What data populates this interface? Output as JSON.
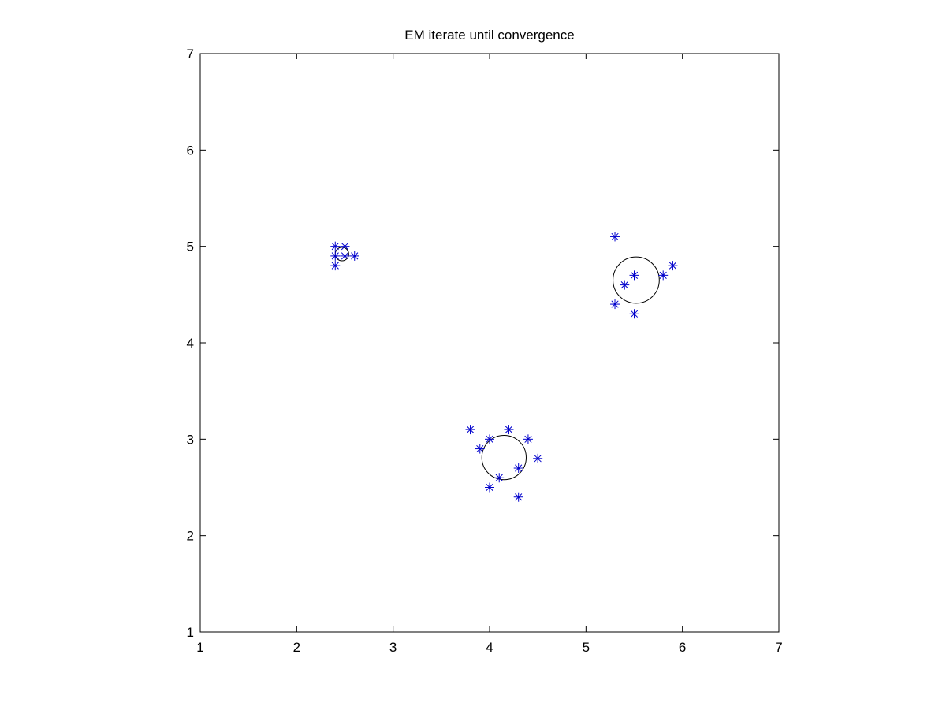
{
  "chart_data": {
    "type": "scatter",
    "title": "EM iterate until convergence",
    "xlabel": "",
    "ylabel": "",
    "xlim": [
      1,
      7
    ],
    "ylim": [
      1,
      7
    ],
    "xticks": [
      "1",
      "2",
      "3",
      "4",
      "5",
      "6",
      "7"
    ],
    "yticks": [
      "1",
      "2",
      "3",
      "4",
      "5",
      "6",
      "7"
    ],
    "grid": false,
    "series": [
      {
        "marker": "asterisk",
        "color": "#0000cc",
        "points": [
          [
            2.4,
            5.0
          ],
          [
            2.5,
            5.0
          ],
          [
            2.4,
            4.9
          ],
          [
            2.5,
            4.9
          ],
          [
            2.6,
            4.9
          ],
          [
            2.4,
            4.8
          ],
          [
            5.3,
            5.1
          ],
          [
            5.9,
            4.8
          ],
          [
            5.8,
            4.7
          ],
          [
            5.5,
            4.7
          ],
          [
            5.4,
            4.6
          ],
          [
            5.3,
            4.4
          ],
          [
            5.5,
            4.3
          ],
          [
            3.8,
            3.1
          ],
          [
            4.2,
            3.1
          ],
          [
            4.0,
            3.0
          ],
          [
            4.4,
            3.0
          ],
          [
            3.9,
            2.9
          ],
          [
            4.5,
            2.8
          ],
          [
            4.3,
            2.7
          ],
          [
            4.1,
            2.6
          ],
          [
            4.0,
            2.5
          ],
          [
            4.3,
            2.4
          ]
        ]
      }
    ],
    "components": [
      {
        "center": [
          2.47,
          4.92
        ],
        "radius": 0.07,
        "color": "#000000"
      },
      {
        "center": [
          5.52,
          4.65
        ],
        "radius": 0.24,
        "color": "#000000"
      },
      {
        "center": [
          4.15,
          2.81
        ],
        "radius": 0.23,
        "color": "#000000"
      }
    ]
  }
}
